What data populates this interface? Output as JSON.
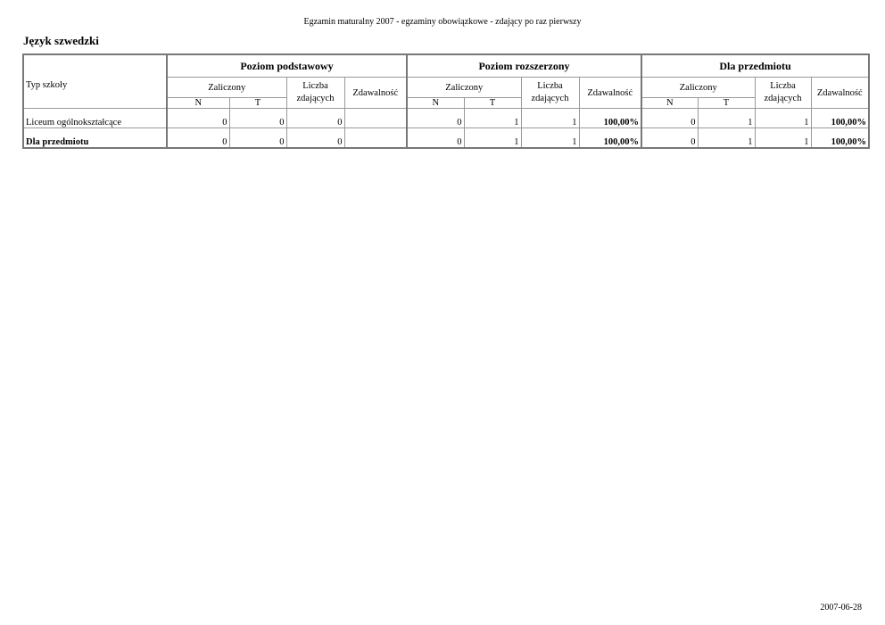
{
  "header": "Egzamin maturalny 2007 - egzaminy obowiązkowe - zdający po raz pierwszy",
  "title": "Język szwedzki",
  "table": {
    "row_header": "Typ szkoły",
    "groups": [
      "Poziom podstawowy",
      "Poziom rozszerzony",
      "Dla przedmiotu"
    ],
    "sub": {
      "zaliczony": "Zaliczony",
      "liczba": "Liczba zdających",
      "zdawalnosc": "Zdawalność",
      "n": "N",
      "t": "T"
    },
    "rows": [
      {
        "label": "Liceum ogólnokształcące",
        "bold": false,
        "cells": [
          "0",
          "0",
          "0",
          "",
          "0",
          "1",
          "1",
          "100,00%",
          "0",
          "1",
          "1",
          "100,00%"
        ]
      },
      {
        "label": "Dla przedmiotu",
        "bold": true,
        "cells": [
          "0",
          "0",
          "0",
          "",
          "0",
          "1",
          "1",
          "100,00%",
          "0",
          "1",
          "1",
          "100,00%"
        ]
      }
    ]
  },
  "footer": "2007-06-28"
}
